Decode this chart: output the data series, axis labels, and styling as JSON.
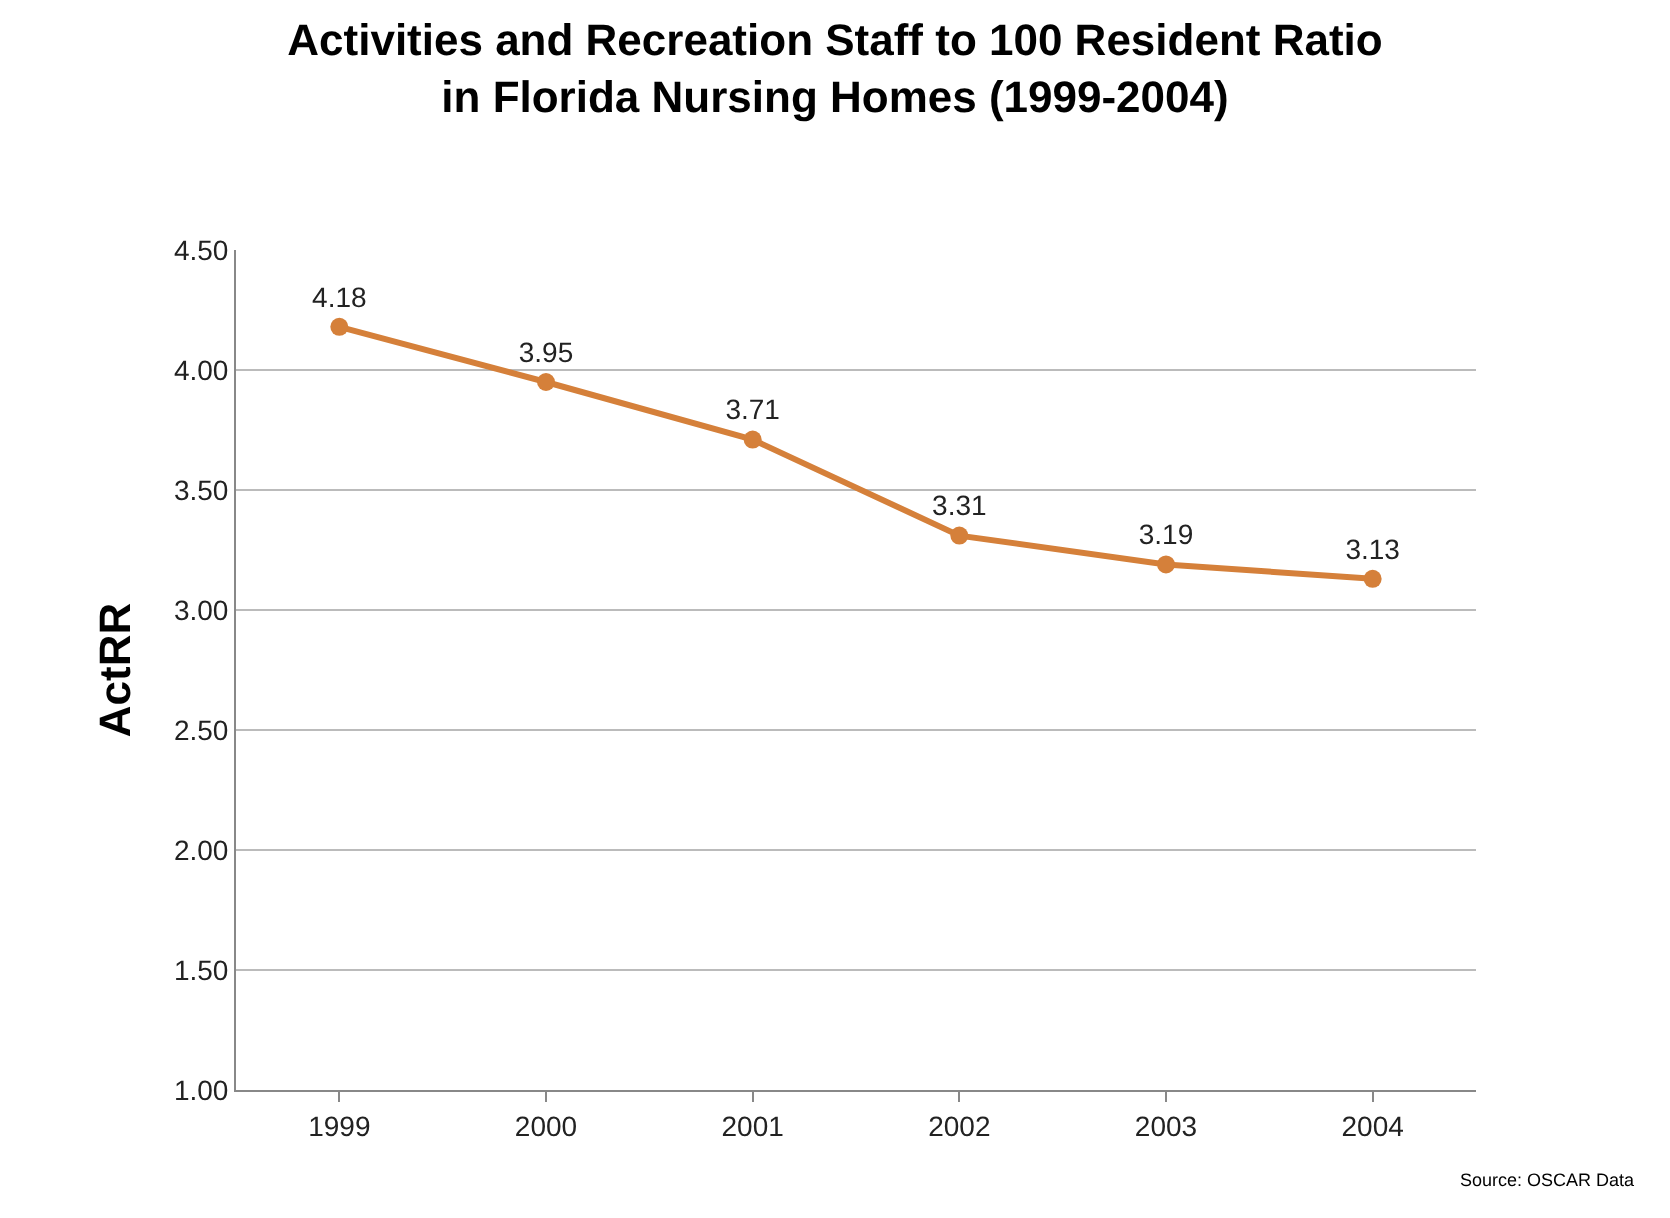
{
  "chart_data": {
    "type": "line",
    "title": "Activities and Recreation Staff to 100 Resident Ratio\nin Florida Nursing Homes (1999-2004)",
    "ylabel": "ActRR",
    "categories": [
      "1999",
      "2000",
      "2001",
      "2002",
      "2003",
      "2004"
    ],
    "series": [
      {
        "color": "#d5803a",
        "values": [
          4.18,
          3.95,
          3.71,
          3.31,
          3.19,
          3.13
        ]
      }
    ],
    "ylim": [
      1.0,
      4.5
    ],
    "yticks": [
      {
        "value": 1.0,
        "label": "1.00"
      },
      {
        "value": 1.5,
        "label": "1.50"
      },
      {
        "value": 2.0,
        "label": "2.00"
      },
      {
        "value": 2.5,
        "label": "2.50"
      },
      {
        "value": 3.0,
        "label": "3.00"
      },
      {
        "value": 3.5,
        "label": "3.50"
      },
      {
        "value": 4.0,
        "label": "4.00"
      },
      {
        "value": 4.5,
        "label": "4.50"
      }
    ],
    "grid": "y",
    "marker": "circle",
    "line_style": "solid",
    "data_labels": true,
    "annotations": [
      "Source: OSCAR Data"
    ]
  }
}
